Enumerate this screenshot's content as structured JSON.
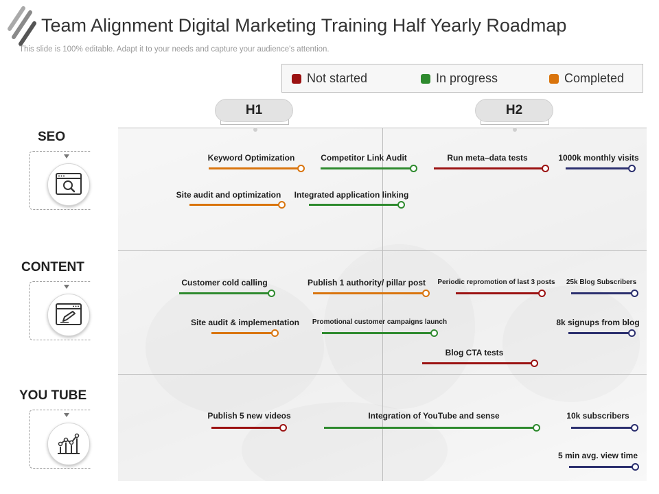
{
  "title": "Team Alignment Digital Marketing Training Half Yearly Roadmap",
  "subtitle": "This slide is 100% editable. Adapt it to your needs and capture your audience's attention.",
  "legend": [
    {
      "label": "Not started",
      "color": "#9b1212"
    },
    {
      "label": "In progress",
      "color": "#2e8a2e"
    },
    {
      "label": "Completed",
      "color": "#d9740d"
    }
  ],
  "halves": [
    "H1",
    "H2"
  ],
  "rows": [
    {
      "label": "SEO",
      "icon": "search-window-icon"
    },
    {
      "label": "CONTENT",
      "icon": "edit-window-icon"
    },
    {
      "label": "YOU TUBE",
      "icon": "analytics-chart-icon"
    }
  ],
  "tasks": {
    "keyword_optimization": {
      "label": "Keyword Optimization",
      "status": "Completed",
      "color": "#d9740d"
    },
    "competitor_link_audit": {
      "label": "Competitor Link Audit",
      "status": "In progress",
      "color": "#2e8a2e"
    },
    "run_meta_data_tests": {
      "label": "Run meta–data tests",
      "status": "Not started",
      "color": "#9b1212"
    },
    "monthly_visits": {
      "label": "1000k monthly visits",
      "status": "Target",
      "color": "#2b2f6e"
    },
    "site_audit_optimization": {
      "label": "Site audit and optimization",
      "status": "Completed",
      "color": "#d9740d"
    },
    "integrated_application_linking": {
      "label": "Integrated application linking",
      "status": "In progress",
      "color": "#2e8a2e"
    },
    "customer_cold_calling": {
      "label": "Customer cold calling",
      "status": "In progress",
      "color": "#2e8a2e"
    },
    "publish_pillar_post": {
      "label": "Publish 1 authority/ pillar post",
      "status": "Completed",
      "color": "#d9740d"
    },
    "periodic_repromotion": {
      "label": "Periodic repromotion of last 3 posts",
      "status": "Not started",
      "color": "#9b1212"
    },
    "blog_subscribers": {
      "label": "25k Blog Subscribers",
      "status": "Target",
      "color": "#2b2f6e"
    },
    "site_audit_implementation": {
      "label": "Site audit & implementation",
      "status": "Completed",
      "color": "#d9740d"
    },
    "promotional_campaigns": {
      "label": "Promotional customer campaigns launch",
      "status": "In progress",
      "color": "#2e8a2e"
    },
    "signups_from_blog": {
      "label": "8k signups from blog",
      "status": "Target",
      "color": "#2b2f6e"
    },
    "blog_cta_tests": {
      "label": "Blog CTA tests",
      "status": "Not started",
      "color": "#9b1212"
    },
    "publish_new_videos": {
      "label": "Publish 5 new videos",
      "status": "Not started",
      "color": "#9b1212"
    },
    "youtube_integration": {
      "label": "Integration of YouTube and sense",
      "status": "In progress",
      "color": "#2e8a2e"
    },
    "youtube_subscribers": {
      "label": "10k subscribers",
      "status": "Target",
      "color": "#2b2f6e"
    },
    "view_time": {
      "label": "5 min avg.  view time",
      "status": "Target",
      "color": "#2b2f6e"
    }
  }
}
